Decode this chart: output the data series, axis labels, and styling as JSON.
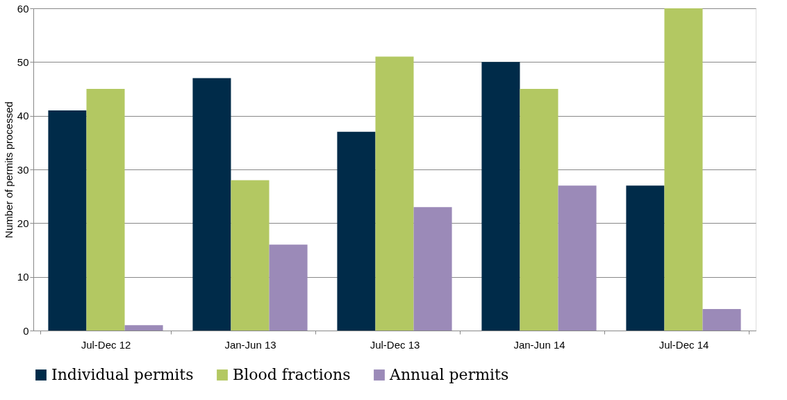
{
  "chart_data": {
    "type": "bar",
    "ylabel": "Number of permits processed",
    "categories": [
      "Jul-Dec 12",
      "Jan-Jun 13",
      "Jul-Dec 13",
      "Jan-Jun 14",
      "Jul-Dec 14"
    ],
    "series": [
      {
        "name": "Individual permits",
        "color": "#002b49",
        "values": [
          41,
          47,
          37,
          50,
          27
        ]
      },
      {
        "name": "Blood fractions",
        "color": "#b3c862",
        "values": [
          45,
          28,
          51,
          45,
          60
        ]
      },
      {
        "name": "Annual permits",
        "color": "#9b8ab8",
        "values": [
          1,
          16,
          23,
          27,
          4
        ]
      }
    ],
    "ylim": [
      0,
      60
    ],
    "yticks": [
      0,
      10,
      20,
      30,
      40,
      50,
      60
    ],
    "grid": "y",
    "legend": "bottom"
  }
}
